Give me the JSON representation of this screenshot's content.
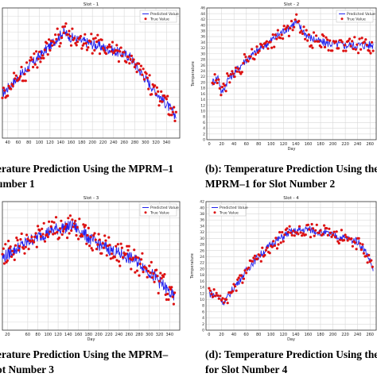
{
  "colors": {
    "predicted": "#2222ee",
    "true": "#dd1111",
    "grid": "#d8d8d8",
    "axis": "#333333"
  },
  "captions": {
    "a": {
      "line1": "erature Prediction Using the MPRM–1",
      "line2": "umber 1"
    },
    "b": {
      "line1": "(b): Temperature Prediction Using the",
      "line2": "MPRM–1 for Slot Number 2"
    },
    "c": {
      "line1": "erature Prediction Using the MPRM–",
      "line2": "ot Number 3"
    },
    "d": {
      "line1": "(d): Temperature Prediction Using the",
      "line2": "for Slot Number 4"
    }
  },
  "chart_data": [
    {
      "id": "slot1",
      "type": "line",
      "title": "Slot - 1",
      "xlabel": "",
      "ylabel": "",
      "xlim": [
        30,
        365
      ],
      "ylim": [
        5,
        40
      ],
      "xticks": [
        40,
        60,
        80,
        100,
        120,
        140,
        160,
        180,
        200,
        220,
        240,
        260,
        280,
        300,
        320,
        340
      ],
      "yticks": [],
      "legend": {
        "position": "upper-right",
        "entries": [
          "Predicted Value",
          "True Value"
        ]
      },
      "grid": true,
      "profile": [
        [
          30,
          17
        ],
        [
          100,
          27
        ],
        [
          145,
          33.5
        ],
        [
          160,
          32
        ],
        [
          230,
          29
        ],
        [
          270,
          27
        ],
        [
          300,
          21
        ],
        [
          340,
          14
        ],
        [
          358,
          11
        ]
      ],
      "series": [
        {
          "name": "Predicted Value",
          "kind": "line",
          "noise": 1.4,
          "x": [],
          "y": []
        },
        {
          "name": "True Value",
          "kind": "scatter",
          "noise": 2.4,
          "x": [],
          "y": []
        }
      ]
    },
    {
      "id": "slot2",
      "type": "line",
      "title": "Slot - 2",
      "xlabel": "Day",
      "ylabel": "Temperature",
      "xlim": [
        -4,
        270
      ],
      "ylim": [
        0,
        46
      ],
      "xticks": [
        0,
        20,
        40,
        60,
        80,
        100,
        120,
        140,
        160,
        180,
        200,
        220,
        240,
        260
      ],
      "yticks": [
        0,
        2,
        4,
        6,
        8,
        10,
        12,
        14,
        16,
        18,
        20,
        22,
        24,
        26,
        28,
        30,
        32,
        34,
        36,
        38,
        40,
        42,
        44,
        46
      ],
      "legend": {
        "position": "upper-right",
        "entries": [
          "Predicted Value",
          "True Value"
        ]
      },
      "grid": true,
      "profile": [
        [
          5,
          20
        ],
        [
          15,
          22
        ],
        [
          20,
          16
        ],
        [
          30,
          21
        ],
        [
          60,
          28
        ],
        [
          90,
          33
        ],
        [
          120,
          38
        ],
        [
          140,
          41
        ],
        [
          160,
          36
        ],
        [
          180,
          34
        ],
        [
          220,
          33
        ],
        [
          265,
          33
        ]
      ],
      "series": [
        {
          "name": "Predicted Value",
          "kind": "line",
          "noise": 1.5,
          "x": [],
          "y": []
        },
        {
          "name": "True Value",
          "kind": "scatter",
          "noise": 2.6,
          "x": [],
          "y": []
        }
      ]
    },
    {
      "id": "slot3",
      "type": "line",
      "title": "Slot - 3",
      "xlabel": "Day",
      "ylabel": "",
      "xlim": [
        10,
        360
      ],
      "ylim": [
        12,
        44
      ],
      "xticks": [
        20,
        60,
        80,
        100,
        120,
        140,
        160,
        180,
        200,
        220,
        240,
        260,
        280,
        300,
        320,
        340
      ],
      "yticks": [],
      "legend": {
        "position": "upper-right",
        "entries": [
          "Predicted Value",
          "True Value"
        ]
      },
      "grid": true,
      "profile": [
        [
          10,
          30
        ],
        [
          60,
          34
        ],
        [
          110,
          37
        ],
        [
          150,
          38
        ],
        [
          190,
          34
        ],
        [
          240,
          31
        ],
        [
          280,
          29
        ],
        [
          320,
          24
        ],
        [
          350,
          20
        ]
      ],
      "series": [
        {
          "name": "Predicted Value",
          "kind": "line",
          "noise": 1.6,
          "x": [],
          "y": []
        },
        {
          "name": "True Value",
          "kind": "scatter",
          "noise": 2.8,
          "x": [],
          "y": []
        }
      ]
    },
    {
      "id": "slot4",
      "type": "line",
      "title": "Slot - 4",
      "xlabel": "Day",
      "ylabel": "Temperature",
      "xlim": [
        -5,
        270
      ],
      "ylim": [
        0,
        42
      ],
      "xticks": [
        0,
        20,
        40,
        60,
        80,
        100,
        120,
        140,
        160,
        180,
        200,
        220,
        240,
        260
      ],
      "yticks": [
        0,
        2,
        4,
        6,
        8,
        10,
        12,
        14,
        16,
        18,
        20,
        22,
        24,
        26,
        28,
        30,
        32,
        34,
        36,
        38,
        40,
        42
      ],
      "legend": {
        "position": "upper-left",
        "entries": [
          "Predicted Value",
          "True Value"
        ]
      },
      "grid": true,
      "profile": [
        [
          0,
          12
        ],
        [
          15,
          11
        ],
        [
          25,
          9
        ],
        [
          40,
          14
        ],
        [
          70,
          22
        ],
        [
          100,
          28
        ],
        [
          130,
          32
        ],
        [
          160,
          33
        ],
        [
          200,
          31
        ],
        [
          240,
          29
        ],
        [
          255,
          25
        ],
        [
          265,
          20
        ]
      ],
      "series": [
        {
          "name": "Predicted Value",
          "kind": "line",
          "noise": 1.3,
          "x": [],
          "y": []
        },
        {
          "name": "True Value",
          "kind": "scatter",
          "noise": 2.2,
          "x": [],
          "y": []
        }
      ]
    }
  ]
}
